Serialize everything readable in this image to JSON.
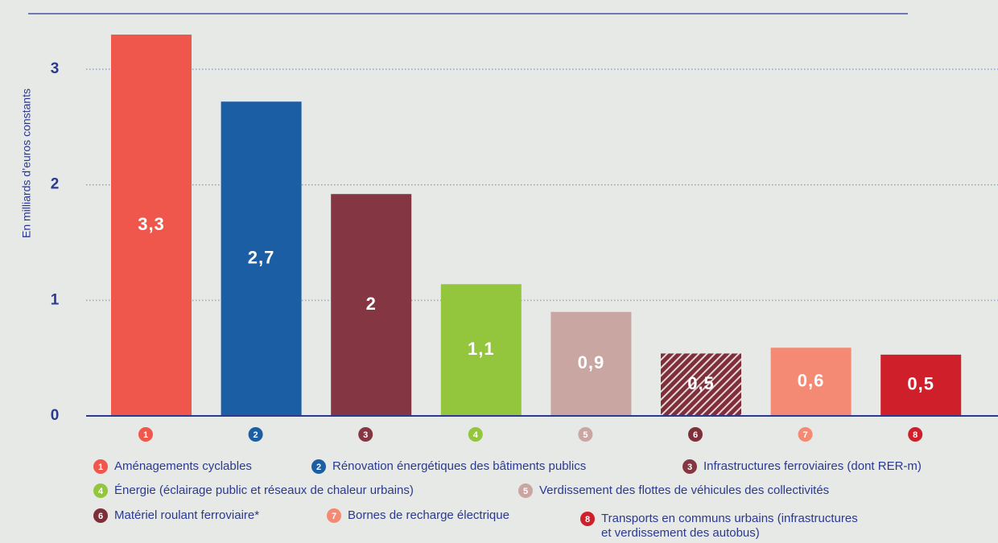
{
  "chart_data": {
    "type": "bar",
    "y_label": "En milliards d’euros constants",
    "categories": [
      "1",
      "2",
      "3",
      "4",
      "5",
      "6",
      "7",
      "8"
    ],
    "values": [
      3.3,
      2.72,
      1.92,
      1.14,
      0.9,
      0.54,
      0.59,
      0.53
    ],
    "value_labels": [
      "3,3",
      "2,7",
      "2",
      "1,1",
      "0,9",
      "0,5",
      "0,6",
      "0,5"
    ],
    "colors": [
      "#f0574c",
      "#1c5ea3",
      "#843742",
      "#93c63d",
      "#caa6a3",
      "#7e2f3a",
      "#f48a74",
      "#cf1f2a"
    ],
    "hatched": [
      false,
      false,
      false,
      false,
      false,
      true,
      false,
      false
    ],
    "ylim": [
      0,
      3.3
    ],
    "yticks": [
      0,
      1,
      2,
      3
    ],
    "grid": true,
    "legend": [
      {
        "number": "1",
        "label": [
          "Aménagements cyclables"
        ]
      },
      {
        "number": "2",
        "label": [
          "Rénovation énergétiques des bâtiments publics"
        ]
      },
      {
        "number": "3",
        "label": [
          "Infrastructures ferroviaires (dont RER-m)"
        ]
      },
      {
        "number": "4",
        "label": [
          "Énergie (éclairage public et réseaux de chaleur urbains)"
        ]
      },
      {
        "number": "5",
        "label": [
          "Verdissement des flottes de véhicules des collectivités"
        ]
      },
      {
        "number": "6",
        "label": [
          "Matériel roulant ferroviaire*"
        ]
      },
      {
        "number": "7",
        "label": [
          "Bornes de recharge électrique"
        ]
      },
      {
        "number": "8",
        "label": [
          "Transports en communs urbains (infrastructures",
          "et verdissement des autobus)"
        ]
      }
    ]
  }
}
